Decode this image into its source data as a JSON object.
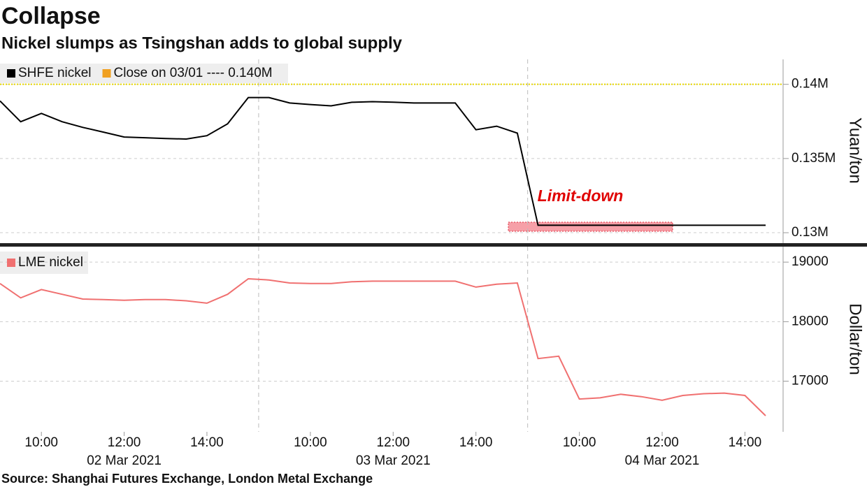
{
  "title": "Collapse",
  "subtitle": "Nickel slumps as Tsingshan adds to global supply",
  "source": "Source:  Shanghai Futures Exchange, London Metal Exchange",
  "chart_data": [
    {
      "type": "line",
      "y_label": "Yuan/ton",
      "annotation": "Limit-down",
      "x": [
        "02 Mar 2021 09:00",
        "02 Mar 2021 09:30",
        "02 Mar 2021 10:00",
        "02 Mar 2021 10:30",
        "02 Mar 2021 11:00",
        "02 Mar 2021 11:30",
        "02 Mar 2021 12:00",
        "02 Mar 2021 12:30",
        "02 Mar 2021 13:00",
        "02 Mar 2021 13:30",
        "02 Mar 2021 14:00",
        "02 Mar 2021 14:30",
        "02 Mar 2021 15:00",
        "03 Mar 2021 09:00",
        "03 Mar 2021 09:30",
        "03 Mar 2021 10:00",
        "03 Mar 2021 10:30",
        "03 Mar 2021 11:00",
        "03 Mar 2021 11:30",
        "03 Mar 2021 12:00",
        "03 Mar 2021 12:30",
        "03 Mar 2021 13:00",
        "03 Mar 2021 13:30",
        "03 Mar 2021 14:00",
        "03 Mar 2021 14:30",
        "03 Mar 2021 15:00",
        "04 Mar 2021 09:00",
        "04 Mar 2021 09:30",
        "04 Mar 2021 10:00",
        "04 Mar 2021 10:30",
        "04 Mar 2021 11:00",
        "04 Mar 2021 11:30",
        "04 Mar 2021 12:00",
        "04 Mar 2021 12:30",
        "04 Mar 2021 13:00",
        "04 Mar 2021 13:30",
        "04 Mar 2021 14:00",
        "04 Mar 2021 14:30"
      ],
      "series": [
        {
          "name": "SHFE nickel",
          "color": "#000000",
          "values": [
            138880,
            137480,
            138040,
            137480,
            137100,
            136780,
            136450,
            136400,
            136350,
            136310,
            136540,
            137340,
            139110,
            139110,
            138740,
            138640,
            138550,
            138790,
            138830,
            138800,
            138740,
            138740,
            138740,
            136940,
            137180,
            136710,
            130500,
            130500,
            130500,
            130500,
            130500,
            130500,
            130500,
            130500,
            130500,
            130500,
            130500,
            130500
          ]
        }
      ],
      "reference": {
        "label": "Close on 03/01 ---- 0.140M",
        "value": 140000,
        "color": "#f0a020"
      },
      "ylim": [
        129390,
        141680
      ],
      "yticks": [
        {
          "value": 130000,
          "label": "0.13M"
        },
        {
          "value": 135000,
          "label": "0.135M"
        },
        {
          "value": 140000,
          "label": "0.14M"
        }
      ],
      "grid": true
    },
    {
      "type": "line",
      "y_label": "Dollar/ton",
      "x": [
        "02 Mar 2021 09:00",
        "02 Mar 2021 09:30",
        "02 Mar 2021 10:00",
        "02 Mar 2021 10:30",
        "02 Mar 2021 11:00",
        "02 Mar 2021 11:30",
        "02 Mar 2021 12:00",
        "02 Mar 2021 12:30",
        "02 Mar 2021 13:00",
        "02 Mar 2021 13:30",
        "02 Mar 2021 14:00",
        "02 Mar 2021 14:30",
        "02 Mar 2021 15:00",
        "03 Mar 2021 09:00",
        "03 Mar 2021 09:30",
        "03 Mar 2021 10:00",
        "03 Mar 2021 10:30",
        "03 Mar 2021 11:00",
        "03 Mar 2021 11:30",
        "03 Mar 2021 12:00",
        "03 Mar 2021 12:30",
        "03 Mar 2021 13:00",
        "03 Mar 2021 13:30",
        "03 Mar 2021 14:00",
        "03 Mar 2021 14:30",
        "03 Mar 2021 15:00",
        "04 Mar 2021 09:00",
        "04 Mar 2021 09:30",
        "04 Mar 2021 10:00",
        "04 Mar 2021 10:30",
        "04 Mar 2021 11:00",
        "04 Mar 2021 11:30",
        "04 Mar 2021 12:00",
        "04 Mar 2021 12:30",
        "04 Mar 2021 13:00",
        "04 Mar 2021 13:30",
        "04 Mar 2021 14:00",
        "04 Mar 2021 14:30"
      ],
      "series": [
        {
          "name": "LME nickel",
          "color": "#f07070",
          "values": [
            18640,
            18400,
            18540,
            18460,
            18380,
            18370,
            18360,
            18370,
            18370,
            18350,
            18310,
            18460,
            18720,
            18700,
            18650,
            18640,
            18640,
            18670,
            18680,
            18680,
            18680,
            18680,
            18680,
            18580,
            18630,
            18650,
            17380,
            17420,
            16700,
            16720,
            16780,
            16740,
            16680,
            16760,
            16790,
            16800,
            16760,
            16420
          ]
        }
      ],
      "ylim": [
        16150,
        19260
      ],
      "yticks": [
        17000,
        18000,
        19000
      ],
      "grid": true,
      "xticks": [
        {
          "value": "02 Mar 2021 10:00",
          "label": "10:00"
        },
        {
          "value": "02 Mar 2021 12:00",
          "label": "12:00"
        },
        {
          "value": "02 Mar 2021 14:00",
          "label": "14:00"
        },
        {
          "value": "03 Mar 2021 10:00",
          "label": "10:00"
        },
        {
          "value": "03 Mar 2021 12:00",
          "label": "12:00"
        },
        {
          "value": "03 Mar 2021 14:00",
          "label": "14:00"
        },
        {
          "value": "04 Mar 2021 10:00",
          "label": "10:00"
        },
        {
          "value": "04 Mar 2021 12:00",
          "label": "12:00"
        },
        {
          "value": "04 Mar 2021 14:00",
          "label": "14:00"
        }
      ],
      "xdates": [
        {
          "value": "02 Mar 2021 12:00",
          "label": "02 Mar 2021"
        },
        {
          "value": "03 Mar 2021 12:00",
          "label": "03 Mar 2021"
        },
        {
          "value": "04 Mar 2021 12:00",
          "label": "04 Mar 2021"
        }
      ]
    }
  ]
}
